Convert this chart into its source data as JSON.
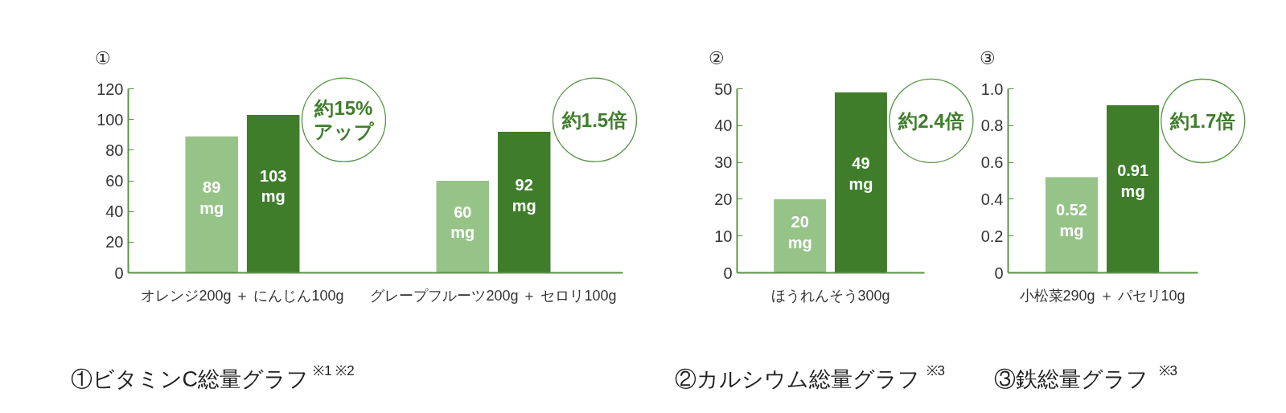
{
  "chart_data": [
    {
      "type": "bar",
      "title": "①",
      "categories": [
        "オレンジ200g ＋ にんじん100g",
        "グレープフルーツ200g ＋ セロリ100g"
      ],
      "series": [
        {
          "color": "#96c488",
          "values": [
            89,
            60
          ],
          "value_labels": [
            "89\nmg",
            "60\nmg"
          ]
        },
        {
          "color": "#3f7d2b",
          "values": [
            103,
            92
          ],
          "value_labels": [
            "103\nmg",
            "92\nmg"
          ]
        }
      ],
      "ylim": [
        0,
        120
      ],
      "yticks": [
        0,
        20,
        40,
        60,
        80,
        100,
        120
      ],
      "annotations": [
        "約15%\nアップ",
        "約1.5倍",
        "①ビタミンC総量グラフ $^{※1 ※2}$"
      ]
    },
    {
      "type": "bar",
      "title": "②",
      "categories": [
        "ほうれんそう300g"
      ],
      "series": [
        {
          "color": "#96c488",
          "values": [
            20
          ],
          "value_labels": [
            "20\nmg"
          ]
        },
        {
          "color": "#3f7d2b",
          "values": [
            49
          ],
          "value_labels": [
            "49\nmg"
          ]
        }
      ],
      "ylim": [
        0,
        50
      ],
      "yticks": [
        0,
        10,
        20,
        30,
        40,
        50
      ],
      "annotations": [
        "約2.4倍",
        "②カルシウム総量グラフ $^{※3}$"
      ]
    },
    {
      "type": "bar",
      "title": "③",
      "categories": [
        "小松菜290g ＋ パセリ10g"
      ],
      "series": [
        {
          "color": "#96c488",
          "values": [
            0.52
          ],
          "value_labels": [
            "0.52\nmg"
          ]
        },
        {
          "color": "#3f7d2b",
          "values": [
            0.91
          ],
          "value_labels": [
            "0.91\nmg"
          ]
        }
      ],
      "ylim": [
        0,
        1.0
      ],
      "yticks": [
        0,
        0.2,
        0.4,
        0.6,
        0.8,
        {
          "value": 1.0,
          "label": "1.0"
        }
      ],
      "annotations": [
        "約1.7倍",
        "③鉄総量グラフ $^{※3}$"
      ]
    }
  ]
}
